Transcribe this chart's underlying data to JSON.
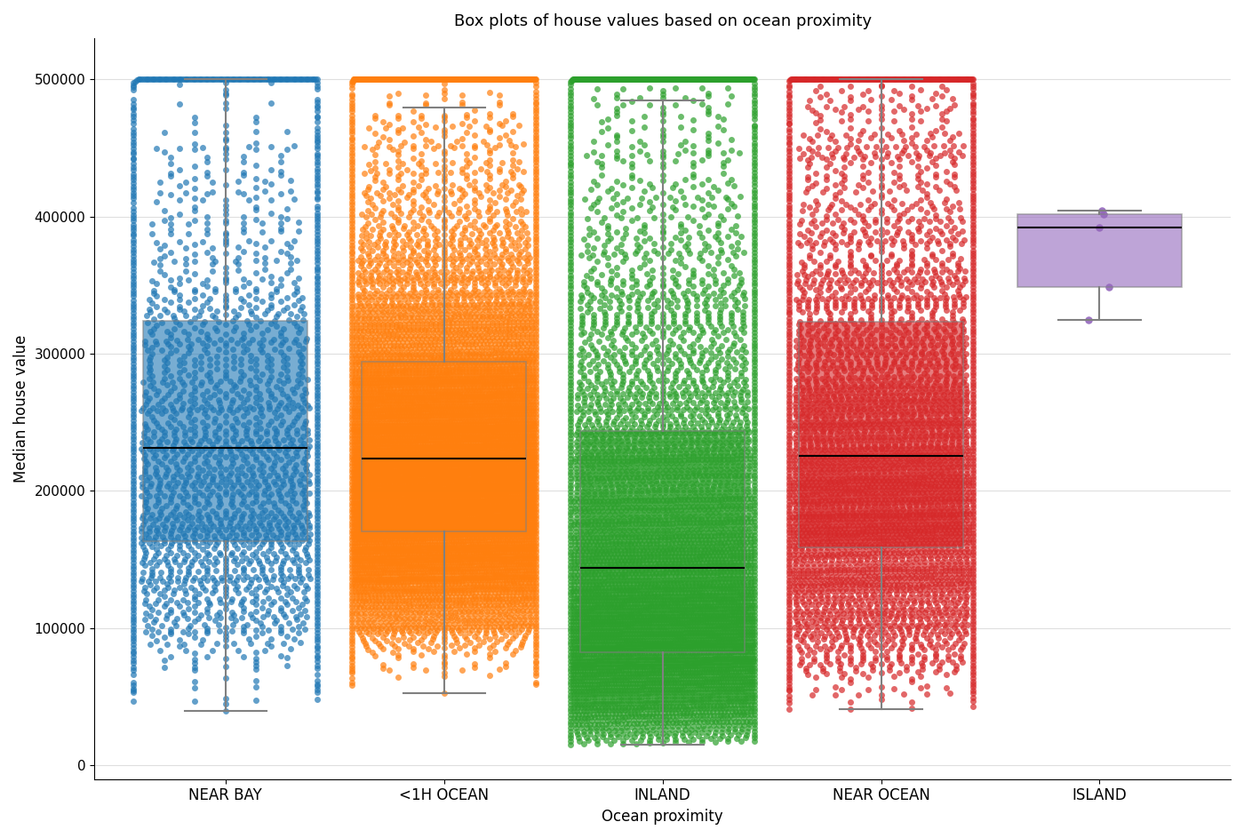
{
  "title": "Box plots of house values based on ocean proximity",
  "xlabel": "Ocean proximity",
  "ylabel": "Median house value",
  "categories": [
    "NEAR BAY",
    "<1H OCEAN",
    "INLAND",
    "NEAR OCEAN",
    "ISLAND"
  ],
  "colors": [
    "#1f77b4",
    "#ff7f0e",
    "#2ca02c",
    "#d62728",
    "#9467bd"
  ],
  "box_stats": {
    "NEAR BAY": {
      "q1": 162000,
      "median": 234000,
      "q3": 340000,
      "whisker_low": 22500,
      "whisker_high": 500001
    },
    "<1H OCEAN": {
      "q1": 168000,
      "median": 218000,
      "q3": 283000,
      "whisker_low": 18000,
      "whisker_high": 500001
    },
    "INLAND": {
      "q1": 81000,
      "median": 148000,
      "q3": 247000,
      "whisker_low": 15000,
      "whisker_high": 500001
    },
    "NEAR OCEAN": {
      "q1": 151000,
      "median": 231000,
      "q3": 320000,
      "whisker_low": 20000,
      "whisker_high": 500001
    },
    "ISLAND": {
      "q1": 300000,
      "median": 413000,
      "q3": 442000,
      "whisker_low": 287500,
      "whisker_high": 450000
    }
  },
  "ylim": [
    -10000,
    530000
  ],
  "yticks": [
    0,
    100000,
    200000,
    300000,
    400000,
    500000
  ],
  "ytick_labels": [
    "0",
    "100000",
    "200000",
    "300000",
    "400000",
    "500000"
  ],
  "figsize": [
    14.0,
    9.43
  ],
  "dpi": 100,
  "strip_alpha": 0.7,
  "strip_size": 5,
  "box_width": 0.75,
  "n_points": {
    "NEAR BAY": 2290,
    "<1H OCEAN": 9136,
    "INLAND": 6551,
    "NEAR OCEAN": 4508,
    "ISLAND": 5
  }
}
